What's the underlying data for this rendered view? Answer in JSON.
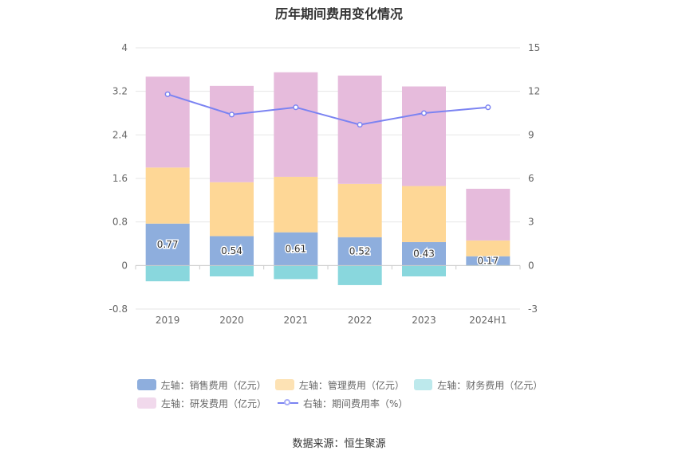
{
  "chart_data": {
    "type": "bar",
    "title": "历年期间费用变化情况",
    "categories": [
      "2019",
      "2020",
      "2021",
      "2022",
      "2023",
      "2024H1"
    ],
    "left_axis": {
      "ticks": [
        "4",
        "3.2",
        "2.4",
        "1.6",
        "0.8",
        "0",
        "-0.8"
      ],
      "ylim": [
        -0.8,
        4
      ]
    },
    "right_axis": {
      "ticks": [
        "15",
        "12",
        "9",
        "6",
        "3",
        "0",
        "-3"
      ],
      "ylim": [
        -3,
        15
      ]
    },
    "series": [
      {
        "name": "左轴：销售费用（亿元）",
        "color": "#8eaedd",
        "values": [
          0.77,
          0.54,
          0.61,
          0.52,
          0.43,
          0.17
        ],
        "value_labels": [
          "0.77",
          "0.54",
          "0.61",
          "0.52",
          "0.43",
          "0.17"
        ]
      },
      {
        "name": "左轴：管理费用（亿元）",
        "color": "#fed796",
        "values": [
          1.03,
          0.99,
          1.02,
          0.98,
          1.03,
          0.29
        ]
      },
      {
        "name": "左轴：财务费用（亿元）",
        "color": "#89d7dd",
        "values": [
          -0.29,
          -0.2,
          -0.25,
          -0.36,
          -0.2,
          -0.01
        ]
      },
      {
        "name": "左轴：研发费用（亿元）",
        "color": "#e6bbdc",
        "values": [
          1.67,
          1.77,
          1.92,
          1.99,
          1.83,
          0.95
        ]
      },
      {
        "name": "右轴：期间费用率（%）",
        "color": "#7b83f2",
        "type": "line",
        "axis": "right",
        "values": [
          11.8,
          10.4,
          10.9,
          9.7,
          10.5,
          10.9
        ]
      }
    ],
    "grid": true,
    "legend_position": "bottom"
  },
  "legend": {
    "items": [
      {
        "label": "左轴：销售费用（亿元）",
        "color": "#8eaedd"
      },
      {
        "label": "左轴：管理费用（亿元）",
        "color": "#fde2b4"
      },
      {
        "label": "左轴：财务费用（亿元）",
        "color": "#bde9ec"
      },
      {
        "label": "左轴：研发费用（亿元）",
        "color": "#f1d9ec"
      },
      {
        "label": "右轴：期间费用率（%）",
        "color": "#7b83f2"
      }
    ]
  },
  "source": "数据来源：恒生聚源"
}
